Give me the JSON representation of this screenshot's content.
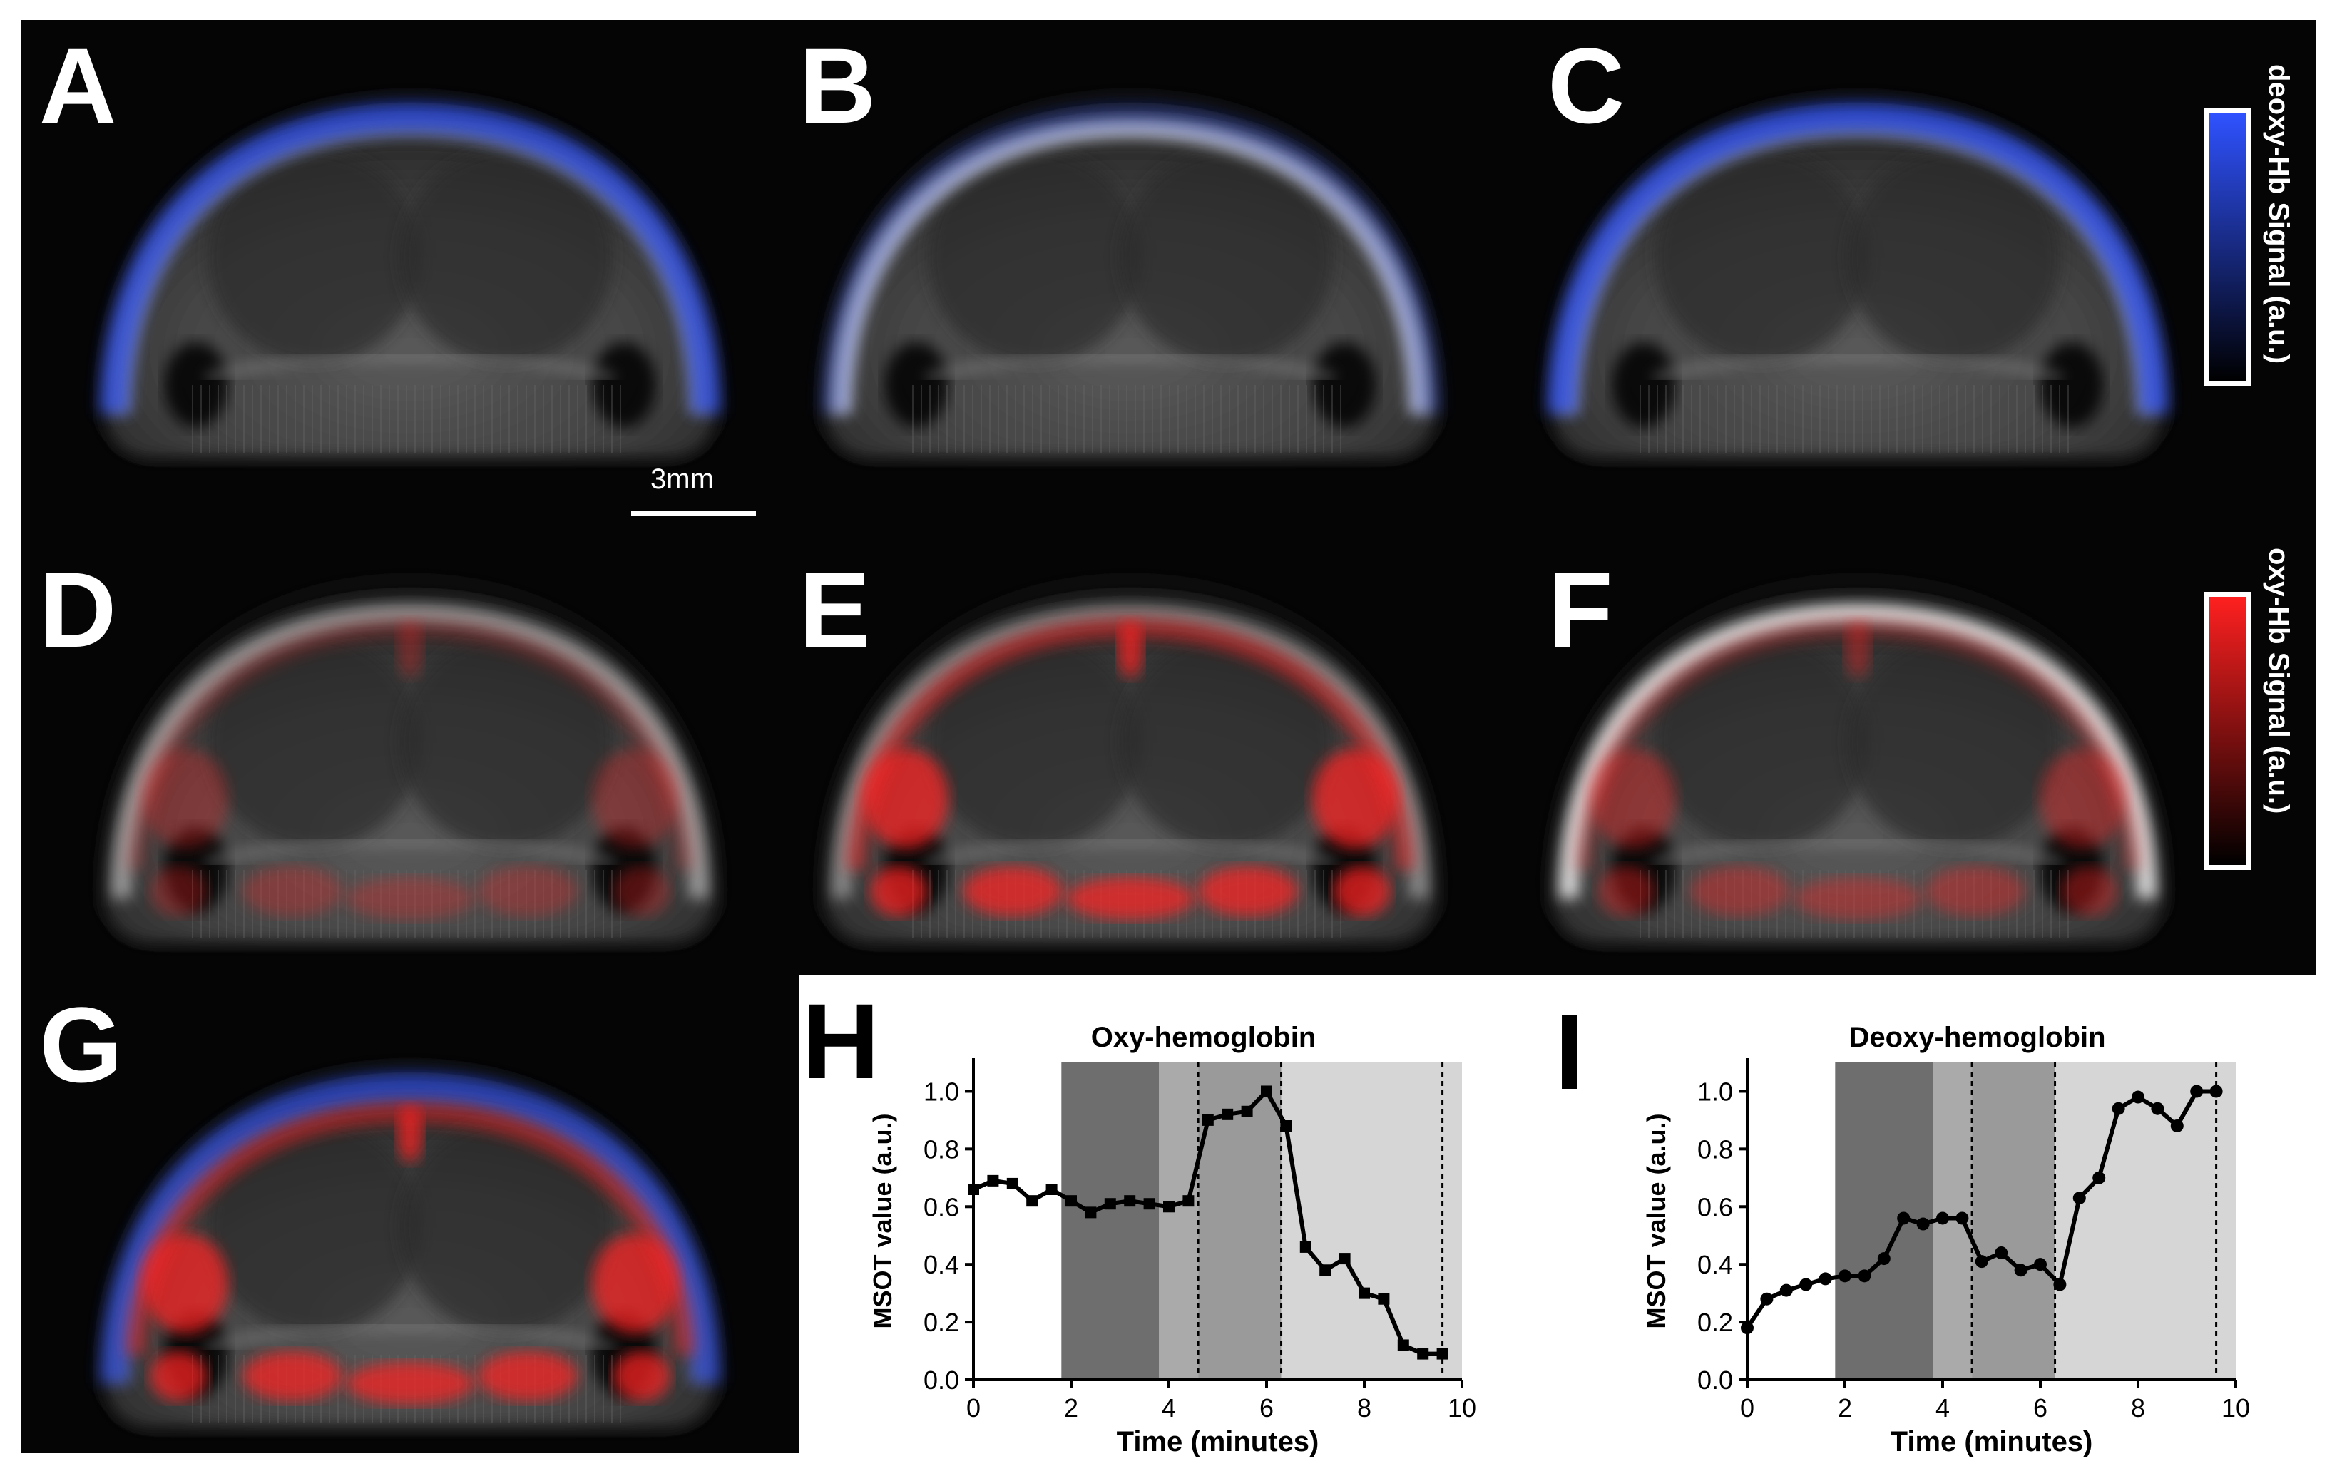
{
  "panels": {
    "A": "A",
    "B": "B",
    "C": "C",
    "D": "D",
    "E": "E",
    "F": "F",
    "G": "G",
    "H": "H",
    "I": "I"
  },
  "scale_bar": {
    "label": "3mm"
  },
  "colorbars": {
    "deoxy": {
      "label": "deoxy-Hb Signal (a.u.)",
      "color": "#2f52ff"
    },
    "oxy": {
      "label": "oxy-Hb Signal (a.u.)",
      "color": "#ff2020"
    }
  },
  "chart_data": [
    {
      "type": "line",
      "title": "Oxy-hemoglobin",
      "xlabel": "Time (minutes)",
      "ylabel": "MSOT value (a.u.)",
      "xlim": [
        0,
        10
      ],
      "ylim": [
        0,
        1.1
      ],
      "xticks": [
        "0",
        "2",
        "4",
        "6",
        "8",
        "10"
      ],
      "yticks": [
        "0.0",
        "0.2",
        "0.4",
        "0.6",
        "0.8",
        "1.0"
      ],
      "marker": "square",
      "shaded_regions": [
        {
          "x": [
            1.8,
            3.8
          ],
          "shade": "#6e6e6e"
        },
        {
          "x": [
            3.8,
            4.6
          ],
          "shade": "#aaaaaa"
        },
        {
          "x": [
            4.6,
            6.3
          ],
          "shade": "#9a9a9a"
        },
        {
          "x": [
            6.3,
            10
          ],
          "shade": "#d6d6d6"
        }
      ],
      "dashed_lines_x": [
        4.6,
        6.3,
        9.6
      ],
      "x": [
        0,
        0.4,
        0.8,
        1.2,
        1.6,
        2.0,
        2.4,
        2.8,
        3.2,
        3.6,
        4.0,
        4.4,
        4.8,
        5.2,
        5.6,
        6.0,
        6.4,
        6.8,
        7.2,
        7.6,
        8.0,
        8.4,
        8.8,
        9.2,
        9.6
      ],
      "y": [
        0.66,
        0.69,
        0.68,
        0.62,
        0.66,
        0.62,
        0.58,
        0.61,
        0.62,
        0.61,
        0.6,
        0.62,
        0.9,
        0.92,
        0.93,
        1.0,
        0.88,
        0.46,
        0.38,
        0.42,
        0.3,
        0.28,
        0.12,
        0.09,
        0.09
      ]
    },
    {
      "type": "line",
      "title": "Deoxy-hemoglobin",
      "xlabel": "Time (minutes)",
      "ylabel": "MSOT value (a.u.)",
      "xlim": [
        0,
        10
      ],
      "ylim": [
        0,
        1.1
      ],
      "xticks": [
        "0",
        "2",
        "4",
        "6",
        "8",
        "10"
      ],
      "yticks": [
        "0.0",
        "0.2",
        "0.4",
        "0.6",
        "0.8",
        "1.0"
      ],
      "marker": "circle",
      "shaded_regions": [
        {
          "x": [
            1.8,
            3.8
          ],
          "shade": "#6e6e6e"
        },
        {
          "x": [
            3.8,
            4.6
          ],
          "shade": "#aaaaaa"
        },
        {
          "x": [
            4.6,
            6.3
          ],
          "shade": "#9a9a9a"
        },
        {
          "x": [
            6.3,
            10
          ],
          "shade": "#d6d6d6"
        }
      ],
      "dashed_lines_x": [
        4.6,
        6.3,
        9.6
      ],
      "x": [
        0,
        0.4,
        0.8,
        1.2,
        1.6,
        2.0,
        2.4,
        2.8,
        3.2,
        3.6,
        4.0,
        4.4,
        4.8,
        5.2,
        5.6,
        6.0,
        6.4,
        6.8,
        7.2,
        7.6,
        8.0,
        8.4,
        8.8,
        9.2,
        9.6
      ],
      "y": [
        0.18,
        0.28,
        0.31,
        0.33,
        0.35,
        0.36,
        0.36,
        0.42,
        0.56,
        0.54,
        0.56,
        0.56,
        0.41,
        0.44,
        0.38,
        0.4,
        0.33,
        0.63,
        0.7,
        0.94,
        0.98,
        0.94,
        0.88,
        1.0,
        1.0
      ]
    }
  ]
}
